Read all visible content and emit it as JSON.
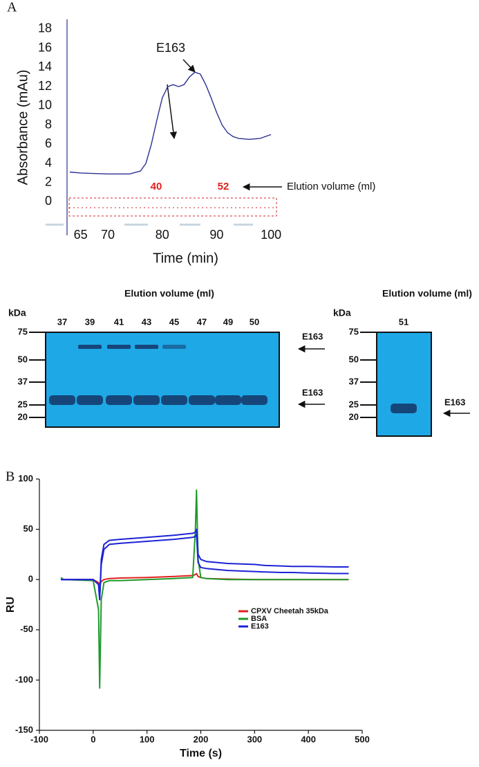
{
  "panels": [
    "A",
    "B"
  ],
  "chart_data": [
    {
      "type": "line",
      "ylabel": "Absorbance (mAu)",
      "xlabel": "Time (min)",
      "x": [
        63,
        65,
        70,
        74,
        76,
        77,
        78,
        79,
        80,
        81,
        82,
        83,
        84,
        85,
        86,
        87,
        88,
        89,
        90,
        91,
        92,
        93,
        94,
        96,
        98,
        100
      ],
      "series": [
        {
          "color": "#2b2f8f",
          "values": [
            3.1,
            3.0,
            2.9,
            2.9,
            3.2,
            4.0,
            6.0,
            8.5,
            10.8,
            12.0,
            12.2,
            12.0,
            12.2,
            13.0,
            13.5,
            13.3,
            12.2,
            10.8,
            9.3,
            8.0,
            7.2,
            6.8,
            6.6,
            6.5,
            6.6,
            7.0
          ]
        }
      ],
      "xlim": [
        62.5,
        101
      ],
      "ylim": [
        -3.5,
        19
      ],
      "xticks": [
        65,
        70,
        80,
        90,
        100
      ],
      "yticks": [
        0,
        2,
        4,
        6,
        8,
        10,
        12,
        14,
        16,
        18
      ],
      "annotations": [
        "E163",
        "40",
        "52",
        "Elution volume (ml)"
      ]
    },
    {
      "type": "line",
      "ylabel": "RU",
      "xlabel": "Time (s)",
      "x": [
        -60,
        -55,
        0,
        10,
        12,
        15,
        20,
        30,
        50,
        100,
        150,
        185,
        190,
        192,
        195,
        200,
        210,
        250,
        300,
        320,
        350,
        370,
        400,
        450,
        475
      ],
      "series": [
        {
          "name": "CPXV Cheetah 35kDa",
          "color": "#e0201b",
          "values": [
            [
              0,
              0,
              0,
              -3,
              -5,
              -2,
              0,
              1,
              1.5,
              2,
              3,
              4,
              5,
              6,
              3,
              2,
              1,
              0.5,
              0,
              0,
              0,
              0,
              0,
              0,
              0
            ]
          ]
        },
        {
          "name": "BSA",
          "color": "#1f9a2a",
          "values": [
            [
              2,
              0,
              -1,
              -30,
              -108,
              -20,
              -3,
              -1,
              -1,
              0,
              1,
              2,
              50,
              89,
              20,
              2,
              1,
              0,
              0,
              0,
              0,
              0,
              0,
              0,
              0
            ]
          ]
        },
        {
          "name": "E163",
          "color": "#1c22d6",
          "values": [
            [
              0,
              0,
              0,
              -5,
              -20,
              20,
              35,
              39,
              40,
              42,
              44,
              46,
              47,
              50,
              25,
              20,
              18,
              16,
              15,
              14,
              13.5,
              13,
              13,
              12.5,
              12.5
            ],
            [
              0,
              0,
              0,
              -5,
              -20,
              15,
              30,
              35,
              36,
              38,
              40,
              42,
              43,
              45,
              17,
              12,
              11,
              9,
              8,
              7.5,
              7,
              7,
              6.5,
              6,
              6
            ]
          ]
        }
      ],
      "xlim": [
        -100,
        500
      ],
      "ylim": [
        -150,
        100
      ],
      "xticks": [
        -100,
        0,
        100,
        200,
        300,
        400,
        500
      ],
      "yticks": [
        -150,
        -100,
        -50,
        0,
        50,
        100
      ],
      "legend": "center-right"
    }
  ],
  "gels": [
    {
      "title": "Elution volume (ml)",
      "unit": "kDa",
      "markers": [
        "75",
        "50",
        "37",
        "25",
        "20"
      ],
      "lanes": [
        "37",
        "39",
        "41",
        "43",
        "45",
        "47",
        "49",
        "50"
      ],
      "band_labels": [
        "E163",
        "E163"
      ]
    },
    {
      "title": "Elution volume (ml)",
      "unit": "kDa",
      "markers": [
        "75",
        "50",
        "37",
        "25",
        "20"
      ],
      "lanes": [
        "51"
      ],
      "band_labels": [
        "E163"
      ]
    }
  ]
}
